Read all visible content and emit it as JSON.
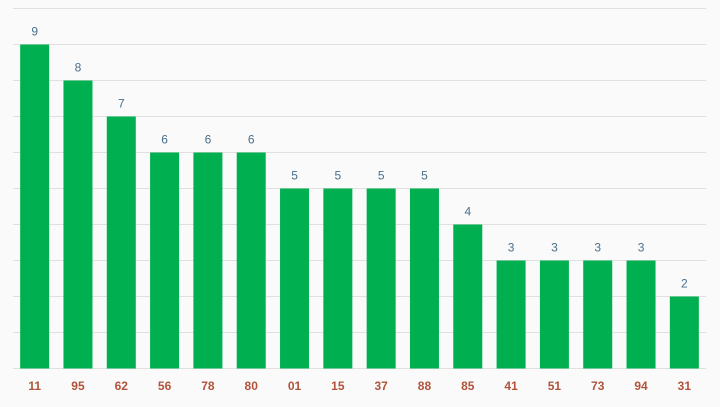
{
  "chart_data": {
    "type": "bar",
    "categories": [
      "11",
      "95",
      "62",
      "56",
      "78",
      "80",
      "01",
      "15",
      "37",
      "88",
      "85",
      "41",
      "51",
      "73",
      "94",
      "31"
    ],
    "values": [
      9,
      8,
      7,
      6,
      6,
      6,
      5,
      5,
      5,
      5,
      4,
      3,
      3,
      3,
      3,
      2
    ],
    "title": "",
    "xlabel": "",
    "ylabel": "",
    "ylim": [
      0,
      10
    ],
    "grid": true,
    "data_labels": true,
    "colors": {
      "bar": "#00b050",
      "value_label": "#4a6f8a",
      "category_label": "#b0533a",
      "grid": "#e0e0e0",
      "background": "#fafafa"
    }
  }
}
